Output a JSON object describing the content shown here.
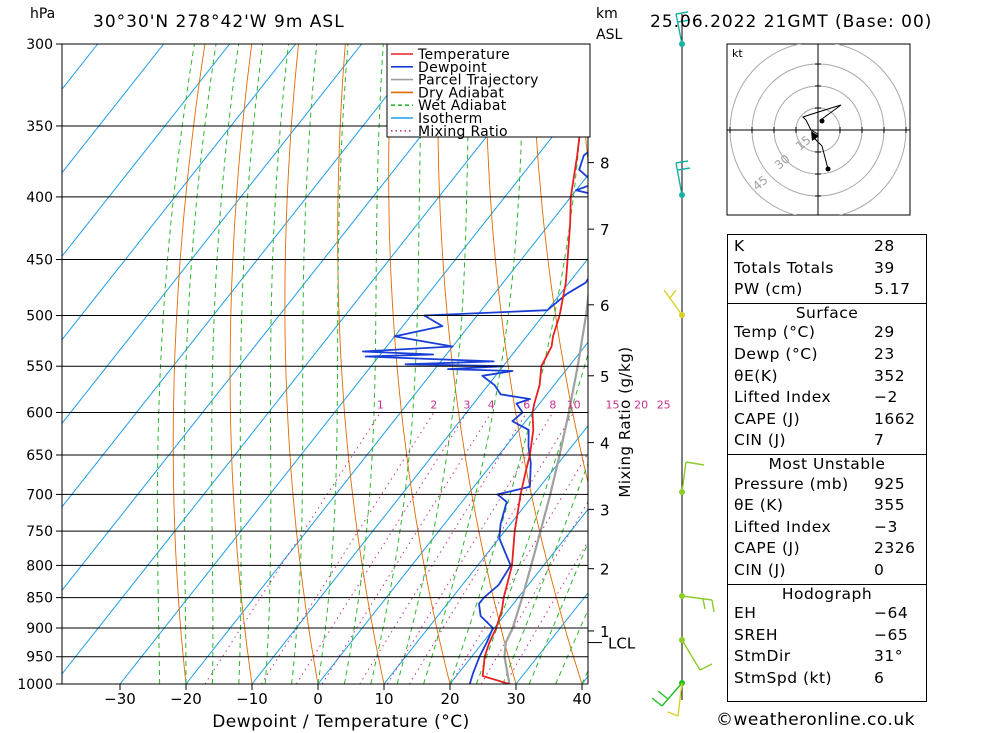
{
  "header": {
    "location": "30°30'N 278°42'W 9m ASL",
    "datetime": "25.06.2022 21GMT (Base: 00)",
    "pressure_unit": "hPa",
    "height_unit_line1": "km",
    "height_unit_line2": "ASL"
  },
  "footer": {
    "copyright": "©weatheronline.co.uk"
  },
  "colors": {
    "temperature": "#e82020",
    "dewpoint": "#1a3fd6",
    "parcel": "#a0a0a0",
    "dry_adiabat": "#e06a00",
    "wet_adiabat": "#2fb52f",
    "isotherm": "#1e9ee8",
    "mixing_ratio": "#c8308c"
  },
  "chart_data": {
    "type": "line",
    "title": "30°30'N 278°42'W 9m ASL",
    "xlabel": "Dewpoint / Temperature (°C)",
    "ylabel": "hPa",
    "xlim": [
      -40,
      40
    ],
    "ylim": [
      1000,
      300
    ],
    "y_scale": "log",
    "grid": true,
    "legend_position": "top-right",
    "x_ticks": [
      -30,
      -20,
      -10,
      0,
      10,
      20,
      30,
      40
    ],
    "x_tick_labels": [
      "−30",
      "−20",
      "−10",
      "0",
      "10",
      "20",
      "30",
      "40"
    ],
    "pressure_levels": [
      300,
      350,
      400,
      450,
      500,
      550,
      600,
      650,
      700,
      750,
      800,
      850,
      900,
      950,
      1000
    ],
    "legend": [
      "Temperature",
      "Dewpoint",
      "Parcel Trajectory",
      "Dry Adiabat",
      "Wet Adiabat",
      "Isotherm",
      "Mixing Ratio"
    ],
    "height_scale": {
      "levels": [
        {
          "km": "8",
          "p": 375
        },
        {
          "km": "7",
          "p": 425
        },
        {
          "km": "6",
          "p": 490
        },
        {
          "km": "5",
          "p": 560
        },
        {
          "km": "4",
          "p": 635
        },
        {
          "km": "3",
          "p": 720
        },
        {
          "km": "2",
          "p": 805
        },
        {
          "km": "1",
          "p": 905
        }
      ],
      "lcl_label": "LCL",
      "lcl_pressure": 925
    },
    "mixing_ratio_axis_label": "Mixing Ratio (g/kg)",
    "mixing_ratio_lines": [
      1,
      2,
      3,
      4,
      6,
      8,
      10,
      15,
      20,
      25
    ],
    "mixing_ratio_labels": [
      "1",
      "2",
      "3",
      "4",
      "6",
      "8",
      "10",
      "15",
      "20",
      "25"
    ],
    "series": [
      {
        "name": "Temperature",
        "points": [
          [
            1000,
            29
          ],
          [
            985,
            24
          ],
          [
            950,
            22
          ],
          [
            925,
            21
          ],
          [
            900,
            20.3
          ],
          [
            870,
            19
          ],
          [
            850,
            17.8
          ],
          [
            800,
            15.2
          ],
          [
            750,
            11.5
          ],
          [
            700,
            8
          ],
          [
            670,
            6
          ],
          [
            650,
            4.7
          ],
          [
            620,
            2.2
          ],
          [
            600,
            0
          ],
          [
            590,
            -0.8
          ],
          [
            570,
            -2.2
          ],
          [
            550,
            -4.2
          ],
          [
            530,
            -5
          ],
          [
            520,
            -6
          ],
          [
            500,
            -7.5
          ],
          [
            470,
            -10.5
          ],
          [
            450,
            -13
          ],
          [
            420,
            -17
          ],
          [
            400,
            -20
          ],
          [
            370,
            -24
          ],
          [
            350,
            -27
          ],
          [
            320,
            -31.5
          ],
          [
            300,
            -35
          ]
        ]
      },
      {
        "name": "Dewpoint",
        "points": [
          [
            1000,
            23
          ],
          [
            980,
            22.2
          ],
          [
            950,
            21.2
          ],
          [
            925,
            20.6
          ],
          [
            900,
            19.8
          ],
          [
            880,
            16.5
          ],
          [
            860,
            14.8
          ],
          [
            850,
            14.8
          ],
          [
            830,
            15.5
          ],
          [
            800,
            15
          ],
          [
            780,
            12.5
          ],
          [
            760,
            10
          ],
          [
            740,
            8.5
          ],
          [
            710,
            6.8
          ],
          [
            700,
            4.5
          ],
          [
            690,
            8.5
          ],
          [
            660,
            5.8
          ],
          [
            640,
            3.5
          ],
          [
            620,
            1.5
          ],
          [
            610,
            -2
          ],
          [
            600,
            -1.5
          ],
          [
            590,
            -3.5
          ],
          [
            585,
            -2
          ],
          [
            580,
            -7
          ],
          [
            570,
            -9
          ],
          [
            560,
            -12
          ],
          [
            555,
            -8
          ],
          [
            553,
            -18
          ],
          [
            550,
            -10
          ],
          [
            548,
            -25
          ],
          [
            545,
            -12
          ],
          [
            540,
            -32
          ],
          [
            538,
            -22
          ],
          [
            535,
            -33
          ],
          [
            530,
            -20
          ],
          [
            520,
            -30
          ],
          [
            510,
            -24
          ],
          [
            500,
            -28
          ],
          [
            495,
            -10
          ],
          [
            480,
            -9
          ],
          [
            470,
            -7.5
          ],
          [
            450,
            -8
          ],
          [
            430,
            -10
          ],
          [
            410,
            -15
          ],
          [
            400,
            -15
          ],
          [
            395,
            -20
          ],
          [
            390,
            -18
          ],
          [
            380,
            -22
          ],
          [
            370,
            -23
          ],
          [
            360,
            -22
          ],
          [
            350,
            -20
          ],
          [
            345,
            -15
          ],
          [
            340,
            -13
          ],
          [
            335,
            -22
          ],
          [
            310,
            -25
          ],
          [
            300,
            -30
          ]
        ]
      },
      {
        "name": "Parcel Trajectory",
        "points": [
          [
            1000,
            29
          ],
          [
            950,
            25
          ],
          [
            925,
            23.5
          ],
          [
            900,
            22.8
          ],
          [
            850,
            20.6
          ],
          [
            800,
            18.1
          ],
          [
            750,
            15.4
          ],
          [
            700,
            12.5
          ],
          [
            650,
            9.2
          ],
          [
            600,
            5.5
          ],
          [
            550,
            1.3
          ],
          [
            500,
            -3.5
          ],
          [
            450,
            -9.2
          ],
          [
            400,
            -16
          ],
          [
            350,
            -24.5
          ],
          [
            300,
            -35
          ]
        ]
      }
    ]
  },
  "hodograph": {
    "unit_label": "kt",
    "ring_labels": [
      "15",
      "30",
      "45"
    ]
  },
  "indices": {
    "rows": [
      {
        "k": "K",
        "v": "28"
      },
      {
        "k": "Totals Totals",
        "v": "39"
      },
      {
        "k": "PW (cm)",
        "v": "5.17"
      }
    ],
    "surface_title": "Surface",
    "surface": [
      {
        "k": "Temp (°C)",
        "v": "29"
      },
      {
        "k": "Dewp (°C)",
        "v": "23"
      },
      {
        "k": "θE(K)",
        "v": "352"
      },
      {
        "k": "Lifted Index",
        "v": "−2"
      },
      {
        "k": "CAPE (J)",
        "v": "1662"
      },
      {
        "k": "CIN (J)",
        "v": "7"
      }
    ],
    "mu_title": "Most Unstable",
    "mu": [
      {
        "k": "Pressure (mb)",
        "v": "925"
      },
      {
        "k": "θE (K)",
        "v": "355"
      },
      {
        "k": "Lifted Index",
        "v": "−3"
      },
      {
        "k": "CAPE (J)",
        "v": "2326"
      },
      {
        "k": "CIN (J)",
        "v": "0"
      }
    ],
    "hodo_title": "Hodograph",
    "hodo": [
      {
        "k": "EH",
        "v": "−64"
      },
      {
        "k": "SREH",
        "v": "−65"
      },
      {
        "k": "StmDir",
        "v": "31°"
      },
      {
        "k": "StmSpd (kt)",
        "v": "6"
      }
    ]
  }
}
